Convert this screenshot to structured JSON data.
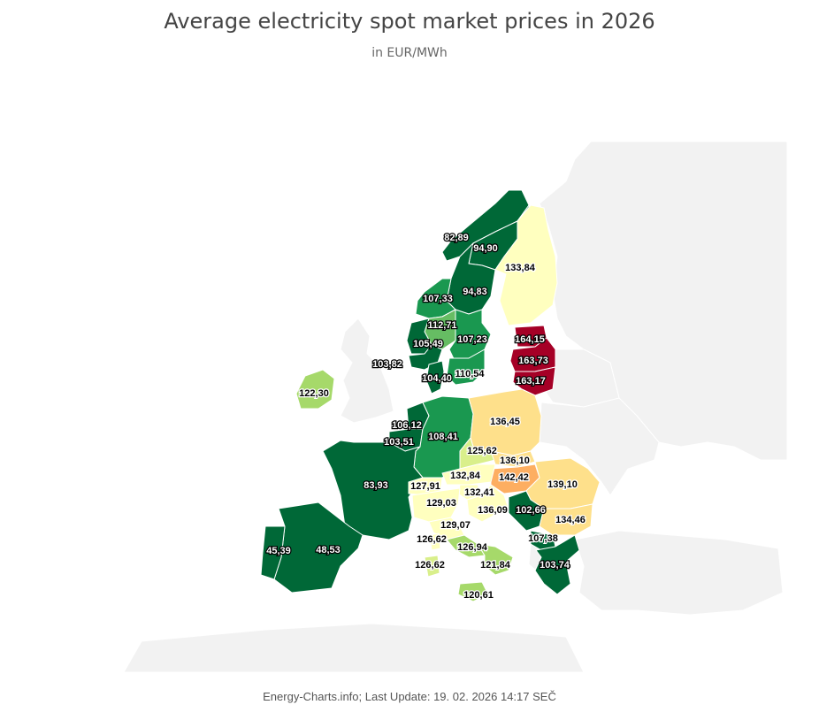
{
  "header": {
    "title": "Average electricity spot market prices in 2026",
    "subtitle": "in EUR/MWh"
  },
  "footer": {
    "credit": "Energy-Charts.info; Last Update: 19. 02. 2026 14:17 SEČ"
  },
  "colors": {
    "lowest": "#006837",
    "low": "#1a9850",
    "mid_low": "#66bd63",
    "mid": "#a6d96a",
    "mid_high": "#d9ef8b",
    "neutral": "#ffffbf",
    "high": "#fee08b",
    "higher": "#fdae61",
    "highest": "#a50026",
    "non_data": "#f2f2f2"
  },
  "regions": [
    {
      "id": "no4",
      "value": "82,89"
    },
    {
      "id": "se1",
      "value": "94,90"
    },
    {
      "id": "fi",
      "value": "133,84"
    },
    {
      "id": "se2",
      "value": "94,83"
    },
    {
      "id": "no3",
      "value": "107,33"
    },
    {
      "id": "no1",
      "value": "112,71"
    },
    {
      "id": "no5",
      "value": "105,49"
    },
    {
      "id": "se3",
      "value": "107,23"
    },
    {
      "id": "ee",
      "value": "164,15"
    },
    {
      "id": "lv",
      "value": "163,73"
    },
    {
      "id": "lt",
      "value": "163,17"
    },
    {
      "id": "no2",
      "value": "103,82"
    },
    {
      "id": "dk1",
      "value": "104,40"
    },
    {
      "id": "se4",
      "value": "110,54"
    },
    {
      "id": "ie",
      "value": "122,30"
    },
    {
      "id": "nl",
      "value": "106,12"
    },
    {
      "id": "be",
      "value": "103,51"
    },
    {
      "id": "de",
      "value": "108,41"
    },
    {
      "id": "pl",
      "value": "136,45"
    },
    {
      "id": "cz",
      "value": "125,62"
    },
    {
      "id": "sk",
      "value": "136,10"
    },
    {
      "id": "hu",
      "value": "142,42"
    },
    {
      "id": "at",
      "value": "132,84"
    },
    {
      "id": "ro",
      "value": "139,10"
    },
    {
      "id": "fr",
      "value": "83,93"
    },
    {
      "id": "ch",
      "value": "127,91"
    },
    {
      "id": "si",
      "value": "132,41"
    },
    {
      "id": "it_north",
      "value": "129,03"
    },
    {
      "id": "hr",
      "value": "136,09"
    },
    {
      "id": "rs",
      "value": "102,66"
    },
    {
      "id": "bg",
      "value": "134,46"
    },
    {
      "id": "it_cnor",
      "value": "129,07"
    },
    {
      "id": "it_csud",
      "value": "126,94"
    },
    {
      "id": "it_sud",
      "value": "121,84"
    },
    {
      "id": "mk",
      "value": "107,38"
    },
    {
      "id": "gr",
      "value": "103,74"
    },
    {
      "id": "es",
      "value": "48,53"
    },
    {
      "id": "pt",
      "value": "45,39"
    },
    {
      "id": "it_sard_north",
      "value": "126,62"
    },
    {
      "id": "it_sard",
      "value": "126,62"
    },
    {
      "id": "it_sicily",
      "value": "120,61"
    }
  ]
}
